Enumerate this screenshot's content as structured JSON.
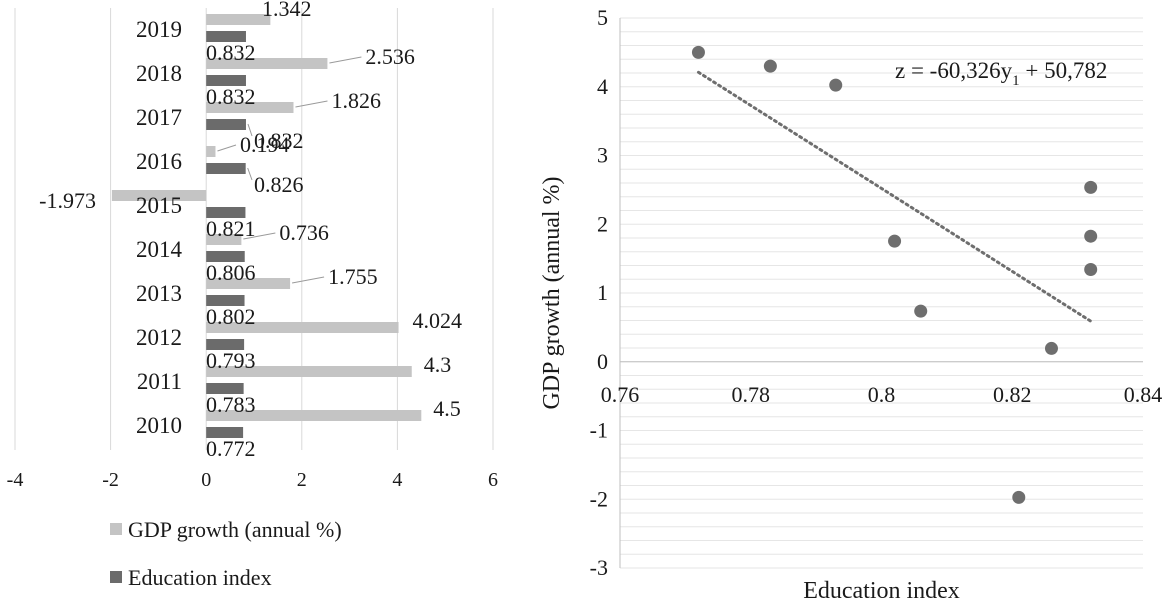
{
  "colors": {
    "gdp_bar": "#c4c4c4",
    "edu_bar": "#6b6b6b",
    "grid": "#d9d9d9",
    "point": "#6e6e6e",
    "trend": "#6e6e6e",
    "text": "#1a1a1a"
  },
  "chart_data": [
    {
      "type": "bar",
      "orientation": "horizontal",
      "categories": [
        "2010",
        "2011",
        "2012",
        "2013",
        "2014",
        "2015",
        "2016",
        "2017",
        "2018",
        "2019"
      ],
      "series": [
        {
          "name": "GDP growth (annual %)",
          "values": [
            4.5,
            4.3,
            4.024,
            1.755,
            0.736,
            -1.973,
            0.194,
            1.826,
            2.536,
            1.342
          ],
          "labels": [
            "4.5",
            "4.3",
            "4.024",
            "1.755",
            "0.736",
            "-1.973",
            "0.194",
            "1.826",
            "2.536",
            "1.342"
          ]
        },
        {
          "name": "Education index",
          "values": [
            0.772,
            0.783,
            0.793,
            0.802,
            0.806,
            0.821,
            0.826,
            0.832,
            0.832,
            0.832
          ],
          "labels": [
            "0.772",
            "0.783",
            "0.793",
            "0.802",
            "0.806",
            "0.821",
            "0.826",
            "0.832",
            "0.832",
            "0.832"
          ]
        }
      ],
      "xlim": [
        -4,
        6
      ],
      "xticks": [
        "-4",
        "-2",
        "0",
        "2",
        "4",
        "6"
      ],
      "grid": true,
      "legend": "bottom"
    },
    {
      "type": "scatter",
      "x": [
        0.772,
        0.783,
        0.793,
        0.802,
        0.806,
        0.821,
        0.826,
        0.832,
        0.832,
        0.832
      ],
      "y": [
        4.5,
        4.3,
        4.024,
        1.755,
        0.736,
        -1.973,
        0.194,
        1.826,
        2.536,
        1.342
      ],
      "xlabel": "Education index",
      "ylabel": "GDP growth (annual %)",
      "xlim": [
        0.76,
        0.84
      ],
      "ylim": [
        -3,
        5
      ],
      "xticks": [
        "0.76",
        "0.78",
        "0.8",
        "0.82",
        "0.84"
      ],
      "yticks": [
        "-3",
        "-2",
        "-1",
        "0",
        "1",
        "2",
        "3",
        "4",
        "5"
      ],
      "trendline": {
        "slope": -60.326,
        "intercept": 50.782,
        "x_range": [
          0.772,
          0.832
        ]
      },
      "equation": {
        "prefix": "z = -60,326y",
        "sub": "1",
        "suffix": " + 50,782"
      },
      "grid": true
    }
  ]
}
